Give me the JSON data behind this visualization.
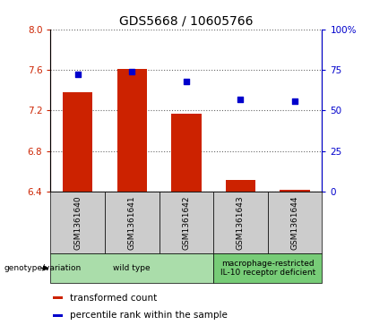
{
  "title": "GDS5668 / 10605766",
  "samples": [
    "GSM1361640",
    "GSM1361641",
    "GSM1361642",
    "GSM1361643",
    "GSM1361644"
  ],
  "transformed_counts": [
    7.38,
    7.61,
    7.17,
    6.52,
    6.42
  ],
  "percentile_ranks": [
    72,
    74,
    68,
    57,
    56
  ],
  "ylim_left": [
    6.4,
    8.0
  ],
  "ylim_right": [
    0,
    100
  ],
  "yticks_left": [
    6.4,
    6.8,
    7.2,
    7.6,
    8.0
  ],
  "yticks_right": [
    0,
    25,
    50,
    75,
    100
  ],
  "ytick_labels_right": [
    "0",
    "25",
    "50",
    "75",
    "100%"
  ],
  "bar_color": "#cc2200",
  "marker_color": "#0000cc",
  "bar_bottom": 6.4,
  "ax_bg_color": "#ffffff",
  "xlabel_bg_color": "#cccccc",
  "genotype_groups": [
    {
      "label": "wild type",
      "samples": [
        0,
        1,
        2
      ],
      "color": "#aaddaa"
    },
    {
      "label": "macrophage-restricted\nIL-10 receptor deficient",
      "samples": [
        3,
        4
      ],
      "color": "#77cc77"
    }
  ],
  "genotype_label": "genotype/variation",
  "legend_entries": [
    {
      "color": "#cc2200",
      "label": "transformed count"
    },
    {
      "color": "#0000cc",
      "label": "percentile rank within the sample"
    }
  ],
  "left_axis_color": "#cc2200",
  "right_axis_color": "#0000cc",
  "title_fontsize": 10,
  "tick_fontsize": 7.5,
  "label_fontsize": 7
}
